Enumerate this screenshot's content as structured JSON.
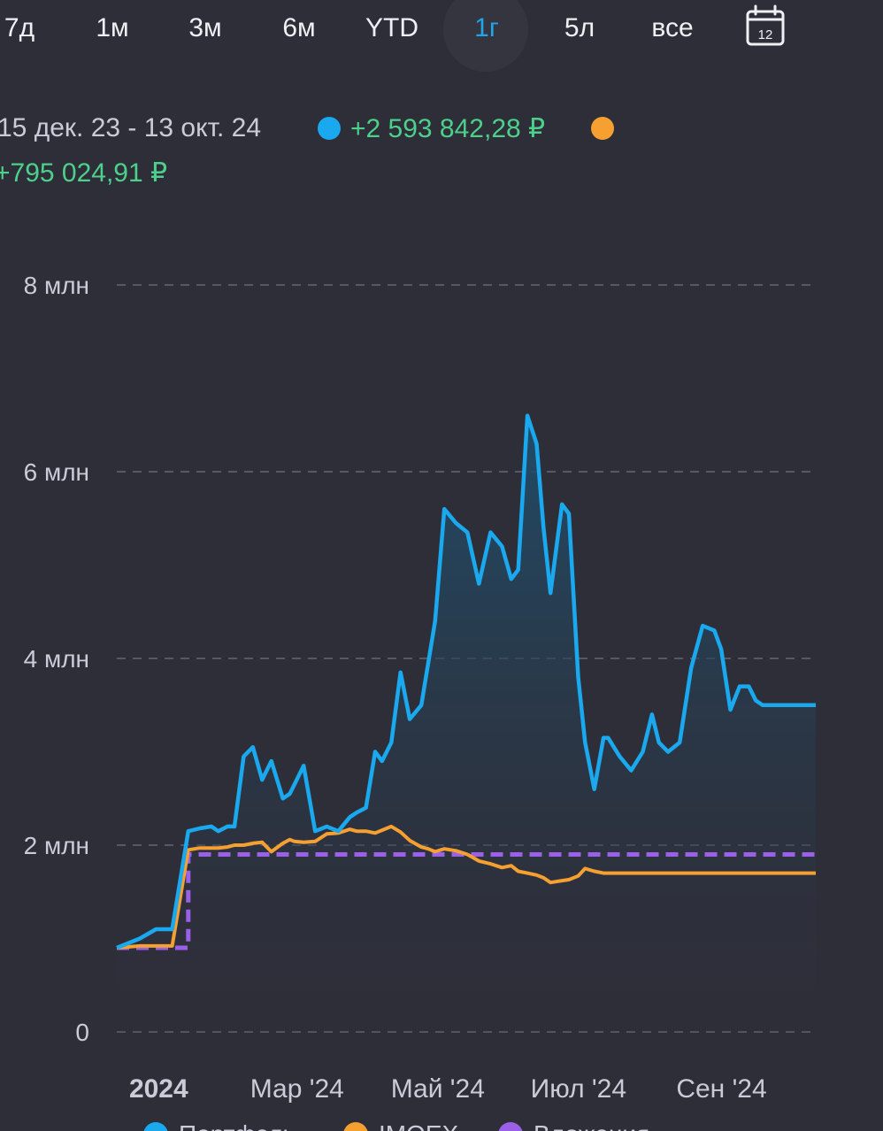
{
  "tabs": [
    {
      "label": "7д"
    },
    {
      "label": "1м"
    },
    {
      "label": "3м"
    },
    {
      "label": "6м"
    },
    {
      "label": "YTD"
    },
    {
      "label": "1г"
    },
    {
      "label": "5л"
    },
    {
      "label": "все"
    }
  ],
  "active_tab": "1г",
  "calendar_icon": {
    "name": "calendar-icon",
    "day": "12"
  },
  "summary": {
    "range": "15 дек. 23 - 13 окт. 24",
    "portfolio_change": "+2 593 842,28 ₽",
    "imoex_change": "+795 024,91 ₽"
  },
  "colors": {
    "portfolio": "#1aa8ee",
    "imoex": "#f5a030",
    "deposits": "#9a60e8",
    "active_tab": "#1fa5e8",
    "positive": "#4cd08b"
  },
  "chart_data": {
    "type": "line",
    "title": "",
    "ylabel": "",
    "ylim": [
      0,
      8
    ],
    "y_unit": "млн ₽",
    "y_ticks": [
      "0",
      "2 млн",
      "4 млн",
      "6 млн",
      "8 млн"
    ],
    "x_ticks": [
      "2024",
      "Мар '24",
      "Май '24",
      "Июл '24",
      "Сен '24"
    ],
    "grid": true,
    "legend_position": "bottom",
    "x": [
      "2023-12-15",
      "2023-12-25",
      "2024-01-01",
      "2024-01-05",
      "2024-01-08",
      "2024-01-15",
      "2024-01-20",
      "2024-01-25",
      "2024-01-28",
      "2024-02-01",
      "2024-02-04",
      "2024-02-08",
      "2024-02-12",
      "2024-02-16",
      "2024-02-20",
      "2024-02-25",
      "2024-02-28",
      "2024-03-01",
      "2024-03-05",
      "2024-03-10",
      "2024-03-15",
      "2024-03-20",
      "2024-03-25",
      "2024-03-28",
      "2024-04-01",
      "2024-04-05",
      "2024-04-08",
      "2024-04-12",
      "2024-04-16",
      "2024-04-20",
      "2024-04-25",
      "2024-04-28",
      "2024-05-01",
      "2024-05-05",
      "2024-05-10",
      "2024-05-15",
      "2024-05-20",
      "2024-05-25",
      "2024-05-30",
      "2024-06-03",
      "2024-06-06",
      "2024-06-10",
      "2024-06-14",
      "2024-06-17",
      "2024-06-20",
      "2024-06-25",
      "2024-06-28",
      "2024-07-02",
      "2024-07-05",
      "2024-07-09",
      "2024-07-13",
      "2024-07-15",
      "2024-07-20",
      "2024-07-25",
      "2024-07-30",
      "2024-08-03",
      "2024-08-06",
      "2024-08-10",
      "2024-08-15",
      "2024-08-20",
      "2024-08-25",
      "2024-08-30",
      "2024-09-02",
      "2024-09-06",
      "2024-09-10",
      "2024-09-14",
      "2024-09-17",
      "2024-09-20",
      "2024-09-25",
      "2024-09-30",
      "2024-10-03",
      "2024-10-06",
      "2024-10-10",
      "2024-10-13"
    ],
    "series": [
      {
        "name": "Портфель",
        "color": "#1aa8ee",
        "values": [
          0.9,
          1.0,
          1.1,
          1.1,
          1.1,
          2.15,
          2.18,
          2.2,
          2.15,
          2.2,
          2.2,
          2.95,
          3.05,
          2.7,
          2.9,
          2.5,
          2.55,
          2.65,
          2.85,
          2.15,
          2.2,
          2.15,
          2.3,
          2.35,
          2.4,
          3.0,
          2.9,
          3.1,
          3.85,
          3.35,
          3.5,
          3.95,
          4.4,
          5.6,
          5.45,
          5.35,
          4.8,
          5.35,
          5.2,
          4.85,
          4.95,
          6.6,
          6.3,
          5.4,
          4.7,
          5.65,
          5.55,
          3.8,
          3.1,
          2.6,
          3.15,
          3.15,
          2.95,
          2.8,
          3.0,
          3.4,
          3.1,
          3.0,
          3.1,
          3.9,
          4.35,
          4.3,
          4.1,
          3.45,
          3.7,
          3.7,
          3.55,
          3.5,
          3.5,
          3.5,
          3.5,
          3.5,
          3.5,
          3.5
        ]
      },
      {
        "name": "IMOEX",
        "color": "#f5a030",
        "values": [
          0.9,
          0.92,
          0.92,
          0.92,
          0.92,
          1.95,
          1.97,
          1.97,
          1.97,
          1.98,
          2.0,
          2.0,
          2.02,
          2.03,
          1.93,
          2.02,
          2.06,
          2.04,
          2.03,
          2.04,
          2.12,
          2.13,
          2.17,
          2.15,
          2.15,
          2.13,
          2.16,
          2.2,
          2.14,
          2.05,
          1.98,
          1.96,
          1.93,
          1.96,
          1.94,
          1.9,
          1.83,
          1.8,
          1.76,
          1.78,
          1.72,
          1.7,
          1.68,
          1.65,
          1.6,
          1.62,
          1.63,
          1.67,
          1.75,
          1.72,
          1.7,
          1.7,
          1.7,
          1.7,
          1.7,
          1.7,
          1.7,
          1.7,
          1.7,
          1.7,
          1.7,
          1.7,
          1.7,
          1.7,
          1.7,
          1.7,
          1.7,
          1.7,
          1.7,
          1.7,
          1.7,
          1.7,
          1.7,
          1.7
        ]
      },
      {
        "name": "Вложения",
        "color": "#9a60e8",
        "values": [
          0.9,
          0.9,
          0.9,
          0.9,
          0.9,
          1.9,
          1.9,
          1.9,
          1.9,
          1.9,
          1.9,
          1.9,
          1.9,
          1.9,
          1.9,
          1.9,
          1.9,
          1.9,
          1.9,
          1.9,
          1.9,
          1.9,
          1.9,
          1.9,
          1.9,
          1.9,
          1.9,
          1.9,
          1.9,
          1.9,
          1.9,
          1.9,
          1.9,
          1.9,
          1.9,
          1.9,
          1.9,
          1.9,
          1.9,
          1.9,
          1.9,
          1.9,
          1.9,
          1.9,
          1.9,
          1.9,
          1.9,
          1.9,
          1.9,
          1.9,
          1.9,
          1.9,
          1.9,
          1.9,
          1.9,
          1.9,
          1.9,
          1.9,
          1.9,
          1.9,
          1.9,
          1.9,
          1.9,
          1.9,
          1.9,
          1.9,
          1.9,
          1.9,
          1.9,
          1.9,
          1.9,
          1.9,
          1.9,
          1.9
        ]
      }
    ]
  }
}
